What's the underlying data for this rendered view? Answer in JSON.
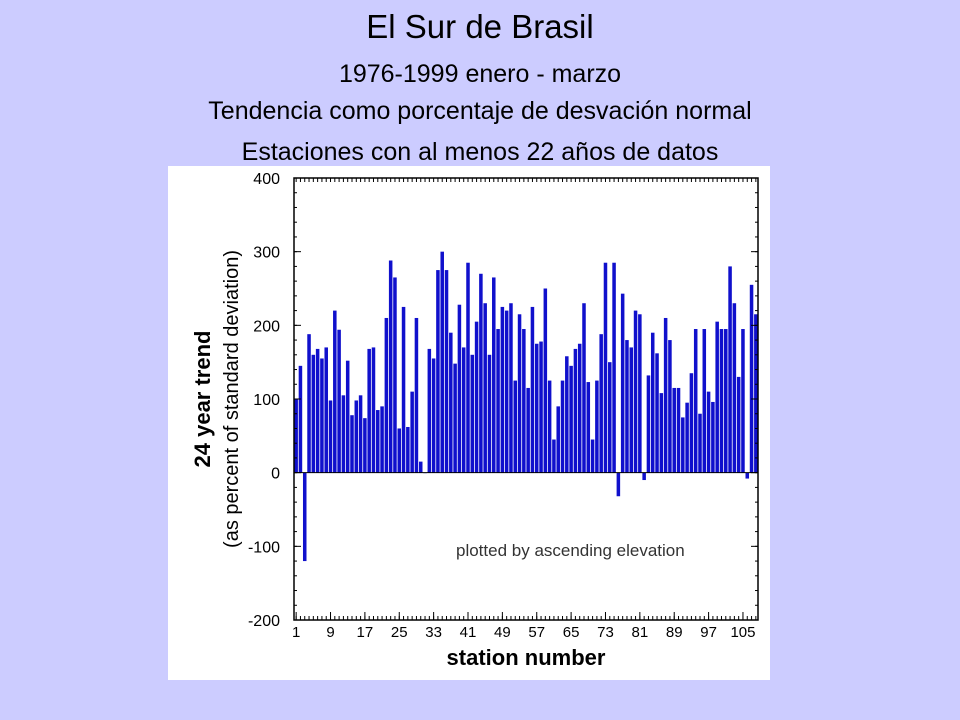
{
  "slide": {
    "title": "El Sur de Brasil",
    "subtitle_line1": "1976-1999 enero - marzo",
    "subtitle_line2": "Tendencia como porcentaje de desvación normal",
    "subtitle_line3": "Estaciones con al menos 22 años de datos"
  },
  "colors": {
    "slide_background": "#ccccff",
    "bar_color": "#1010cc",
    "panel_background": "#ffffff"
  },
  "chart_data": {
    "type": "bar",
    "title": "",
    "xlabel": "station number",
    "ylabel_line1": "24 year trend",
    "ylabel_line2": "(as percent of standard deviation)",
    "annotation": "plotted by ascending elevation",
    "ylim": [
      -200,
      400
    ],
    "y_ticks": [
      400,
      300,
      200,
      100,
      0,
      -100,
      -200
    ],
    "y_tick_labels": [
      "400",
      "300",
      "200",
      "100",
      "0",
      "-100",
      "-200"
    ],
    "x_ticks": [
      1,
      9,
      17,
      25,
      33,
      41,
      49,
      57,
      65,
      73,
      81,
      89,
      97,
      105
    ],
    "x_tick_labels": [
      "1",
      "9",
      "17",
      "25",
      "33",
      "41",
      "49",
      "57",
      "65",
      "73",
      "81",
      "89",
      "97",
      "105"
    ],
    "xlim": [
      0.5,
      108.5
    ],
    "grid": false,
    "categories_note": "station numbers 1 to 108",
    "values": [
      100,
      145,
      -120,
      188,
      160,
      168,
      155,
      170,
      98,
      220,
      194,
      105,
      152,
      78,
      98,
      105,
      74,
      168,
      170,
      85,
      90,
      210,
      288,
      265,
      60,
      225,
      62,
      110,
      210,
      15,
      0,
      168,
      155,
      275,
      300,
      275,
      190,
      148,
      228,
      170,
      285,
      160,
      205,
      270,
      230,
      160,
      265,
      195,
      225,
      220,
      230,
      125,
      215,
      195,
      115,
      225,
      175,
      178,
      250,
      125,
      45,
      90,
      125,
      158,
      145,
      168,
      175,
      230,
      123,
      45,
      125,
      188,
      285,
      150,
      285,
      -32,
      243,
      180,
      170,
      220,
      215,
      -10,
      132,
      190,
      162,
      108,
      210,
      180,
      115,
      115,
      75,
      95,
      135,
      195,
      80,
      195,
      110,
      96,
      205,
      195,
      195,
      280,
      230,
      130,
      195,
      -8,
      255,
      215
    ]
  }
}
